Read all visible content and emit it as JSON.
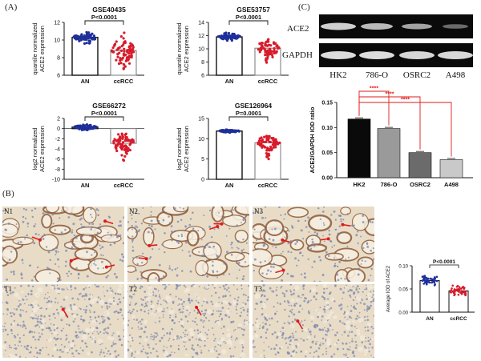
{
  "panel_labels": {
    "a": "(A)",
    "b": "(B)",
    "c": "(C)"
  },
  "colors": {
    "an_dots": "#1f2f9a",
    "ccrcc_dots": "#d81b2a",
    "tissue_bg": "#e9dcc7",
    "tissue_stain": "#8c5b3a",
    "nuclei": "#6d7fae",
    "arrow": "#e01a1a",
    "sig_line": "#e01a1a",
    "hk2_bar": "#0a0a0a",
    "o786_bar": "#9a9a9a",
    "osrc2_bar": "#6b6b6b",
    "a498_bar": "#c9c9c9"
  },
  "blot": {
    "ace2_label": "ACE2",
    "gapdh_label": "GAPDH",
    "lanes": [
      "HK2",
      "786-O",
      "OSRC2",
      "A498"
    ]
  },
  "tiles": {
    "labels": [
      "N1",
      "N2",
      "N3",
      "T1",
      "T2",
      "T3"
    ]
  },
  "chart_data": [
    {
      "id": "GSE40435",
      "type": "bar",
      "title": "GSE40435",
      "ylabel": "quantile normalized ACE2 expression",
      "categories": [
        "AN",
        "ccRCC"
      ],
      "values": [
        10.3,
        8.8
      ],
      "ylim": [
        6,
        12
      ],
      "yticks": [
        6,
        8,
        10,
        12
      ],
      "sig_text": "P<0.0001"
    },
    {
      "id": "GSE53757",
      "type": "bar",
      "title": "GSE53757",
      "ylabel": "quantile normalized ACE2 expression",
      "categories": [
        "AN",
        "ccRCC"
      ],
      "values": [
        11.8,
        10.1
      ],
      "ylim": [
        6,
        14
      ],
      "yticks": [
        6,
        8,
        10,
        12,
        14
      ],
      "sig_text": "P<0.0001"
    },
    {
      "id": "GSE66272",
      "type": "bar",
      "title": "GSE66272",
      "ylabel": "log2 normalized ACE2 expression",
      "categories": [
        "AN",
        "ccRCC"
      ],
      "values": [
        0.3,
        -2.9
      ],
      "ylim": [
        -10,
        2
      ],
      "yticks": [
        -10,
        -8,
        -6,
        -4,
        -2,
        0,
        2
      ],
      "sig_text": "P<0.0001"
    },
    {
      "id": "GSE126964",
      "type": "bar",
      "title": "GSE126964",
      "ylabel": "log2 normalized ACE2 expression",
      "categories": [
        "AN",
        "ccRCC"
      ],
      "values": [
        11.9,
        9.0
      ],
      "ylim": [
        0,
        15
      ],
      "yticks": [
        0,
        5,
        10,
        15
      ],
      "sig_text": "P=0.0001"
    },
    {
      "id": "ACE2_GAPDH",
      "type": "bar",
      "title": "",
      "ylabel": "ACE2/GAPDH IOD ratio",
      "categories": [
        "HK2",
        "786-O",
        "OSRC2",
        "A498"
      ],
      "values": [
        0.117,
        0.098,
        0.05,
        0.036
      ],
      "ylim": [
        0,
        0.15
      ],
      "yticks": [
        "0.00",
        "0.05",
        "0.10",
        "0.15"
      ],
      "sig_text": "****"
    },
    {
      "id": "IOD",
      "type": "bar",
      "title": "",
      "ylabel": "Average IOD of ACE2",
      "categories": [
        "AN",
        "ccRCC"
      ],
      "values": [
        0.068,
        0.046
      ],
      "ylim": [
        0,
        0.1
      ],
      "yticks": [
        "0.00",
        "0.05",
        "0.10"
      ],
      "sig_text": "P<0.0001"
    }
  ]
}
